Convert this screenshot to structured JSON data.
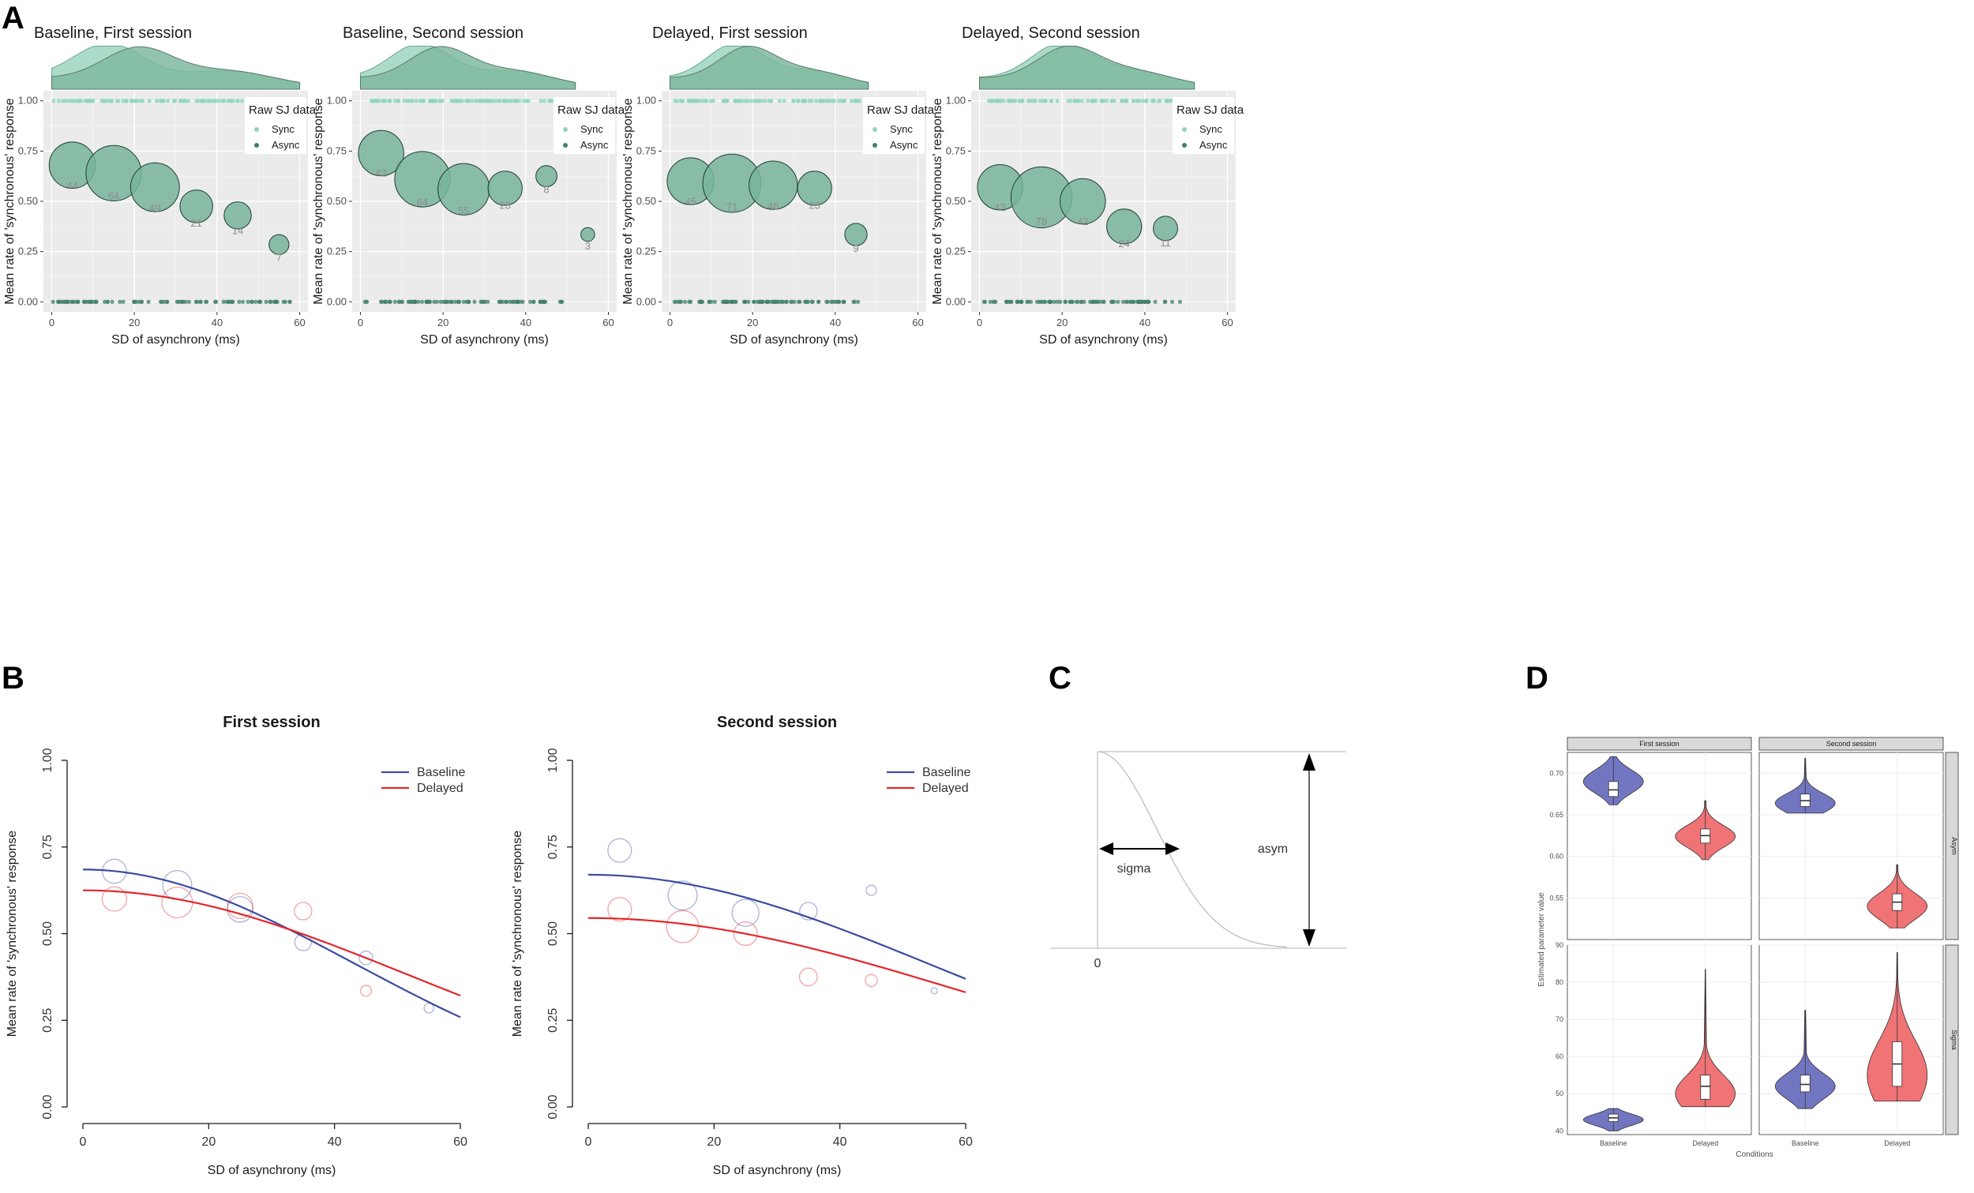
{
  "panel_letters": {
    "a": "A",
    "b": "B",
    "c": "C",
    "d": "D"
  },
  "chart_data": [
    {
      "id": "A1",
      "type": "scatter",
      "title": "Baseline, First session",
      "xlabel": "SD of asynchrony (ms)",
      "ylabel": "Mean rate of 'synchronous' response",
      "xlim": [
        -2,
        62
      ],
      "ylim": [
        -0.05,
        1.05
      ],
      "xticks": [
        "0",
        "20",
        "40",
        "60"
      ],
      "yticks": [
        "0.00",
        "0.25",
        "0.50",
        "0.75",
        "1.00"
      ],
      "legend_title": "Raw SJ data",
      "legend_items": [
        "Sync",
        "Async"
      ],
      "bins": [
        {
          "x": 5,
          "y": 0.68,
          "n": "44"
        },
        {
          "x": 15,
          "y": 0.64,
          "n": "64"
        },
        {
          "x": 25,
          "y": 0.57,
          "n": "49"
        },
        {
          "x": 35,
          "y": 0.475,
          "n": "21"
        },
        {
          "x": 45,
          "y": 0.43,
          "n": "14"
        },
        {
          "x": 55,
          "y": 0.285,
          "n": "7"
        }
      ],
      "raw_range": [
        0,
        58
      ]
    },
    {
      "id": "A2",
      "type": "scatter",
      "title": "Baseline, Second session",
      "xlabel": "SD of asynchrony (ms)",
      "ylabel": "Mean rate of 'synchronous' response",
      "xlim": [
        -2,
        62
      ],
      "ylim": [
        -0.05,
        1.05
      ],
      "xticks": [
        "0",
        "20",
        "40",
        "60"
      ],
      "yticks": [
        "0.00",
        "0.25",
        "0.50",
        "0.75",
        "1.00"
      ],
      "legend_title": "Raw SJ data",
      "legend_items": [
        "Sync",
        "Async"
      ],
      "bins": [
        {
          "x": 5,
          "y": 0.74,
          "n": "42"
        },
        {
          "x": 15,
          "y": 0.61,
          "n": "64"
        },
        {
          "x": 25,
          "y": 0.56,
          "n": "55"
        },
        {
          "x": 35,
          "y": 0.565,
          "n": "23"
        },
        {
          "x": 45,
          "y": 0.625,
          "n": "8"
        },
        {
          "x": 55,
          "y": 0.335,
          "n": "3"
        }
      ],
      "raw_range": [
        1,
        50
      ]
    },
    {
      "id": "A3",
      "type": "scatter",
      "title": "Delayed, First session",
      "xlabel": "SD of asynchrony (ms)",
      "ylabel": "Mean rate of 'synchronous' response",
      "xlim": [
        -2,
        62
      ],
      "ylim": [
        -0.05,
        1.05
      ],
      "xticks": [
        "0",
        "20",
        "40",
        "60"
      ],
      "yticks": [
        "0.00",
        "0.25",
        "0.50",
        "0.75",
        "1.00"
      ],
      "legend_title": "Raw SJ data",
      "legend_items": [
        "Sync",
        "Async"
      ],
      "bins": [
        {
          "x": 5,
          "y": 0.6,
          "n": "45"
        },
        {
          "x": 15,
          "y": 0.59,
          "n": "71"
        },
        {
          "x": 25,
          "y": 0.58,
          "n": "48"
        },
        {
          "x": 35,
          "y": 0.565,
          "n": "23"
        },
        {
          "x": 45,
          "y": 0.335,
          "n": "9"
        }
      ],
      "raw_range": [
        1,
        46
      ]
    },
    {
      "id": "A4",
      "type": "scatter",
      "title": "Delayed, Second session",
      "xlabel": "SD of asynchrony (ms)",
      "ylabel": "Mean rate of 'synchronous' response",
      "xlim": [
        -2,
        62
      ],
      "ylim": [
        -0.05,
        1.05
      ],
      "xticks": [
        "0",
        "20",
        "40",
        "60"
      ],
      "yticks": [
        "0.00",
        "0.25",
        "0.50",
        "0.75",
        "1.00"
      ],
      "legend_title": "Raw SJ data",
      "legend_items": [
        "Sync",
        "Async"
      ],
      "bins": [
        {
          "x": 5,
          "y": 0.57,
          "n": "42"
        },
        {
          "x": 15,
          "y": 0.52,
          "n": "78"
        },
        {
          "x": 25,
          "y": 0.5,
          "n": "42"
        },
        {
          "x": 35,
          "y": 0.375,
          "n": "24"
        },
        {
          "x": 45,
          "y": 0.365,
          "n": "11"
        }
      ],
      "raw_range": [
        1,
        50
      ]
    },
    {
      "id": "B1",
      "type": "line",
      "title": "First session",
      "xlabel": "SD of asynchrony (ms)",
      "ylabel": "Mean rate of 'synchronous' response",
      "xlim": [
        0,
        60
      ],
      "ylim": [
        0,
        1
      ],
      "xticks": [
        "0",
        "20",
        "40",
        "60"
      ],
      "yticks": [
        "0.00",
        "0.25",
        "0.50",
        "0.75",
        "1.00"
      ],
      "series": [
        {
          "name": "Baseline",
          "color": "#3a4ba0",
          "asym": 0.685,
          "sigma": 43,
          "points": [
            {
              "x": 5,
              "y": 0.68,
              "n": 44
            },
            {
              "x": 15,
              "y": 0.64,
              "n": 64
            },
            {
              "x": 25,
              "y": 0.57,
              "n": 49
            },
            {
              "x": 35,
              "y": 0.475,
              "n": 21
            },
            {
              "x": 45,
              "y": 0.43,
              "n": 14
            },
            {
              "x": 55,
              "y": 0.285,
              "n": 7
            }
          ]
        },
        {
          "name": "Delayed",
          "color": "#e3262b",
          "asym": 0.625,
          "sigma": 52,
          "points": [
            {
              "x": 5,
              "y": 0.6,
              "n": 45
            },
            {
              "x": 15,
              "y": 0.59,
              "n": 71
            },
            {
              "x": 25,
              "y": 0.58,
              "n": 48
            },
            {
              "x": 35,
              "y": 0.565,
              "n": 23
            },
            {
              "x": 45,
              "y": 0.335,
              "n": 9
            }
          ]
        }
      ]
    },
    {
      "id": "B2",
      "type": "line",
      "title": "Second session",
      "xlabel": "SD of asynchrony (ms)",
      "ylabel": "Mean rate of 'synchronous' response",
      "xlim": [
        0,
        60
      ],
      "ylim": [
        0,
        1
      ],
      "xticks": [
        "0",
        "20",
        "40",
        "60"
      ],
      "yticks": [
        "0.00",
        "0.25",
        "0.50",
        "0.75",
        "1.00"
      ],
      "series": [
        {
          "name": "Baseline",
          "color": "#3a4ba0",
          "asym": 0.67,
          "sigma": 55,
          "points": [
            {
              "x": 5,
              "y": 0.74,
              "n": 42
            },
            {
              "x": 15,
              "y": 0.61,
              "n": 64
            },
            {
              "x": 25,
              "y": 0.56,
              "n": 55
            },
            {
              "x": 35,
              "y": 0.565,
              "n": 23
            },
            {
              "x": 45,
              "y": 0.625,
              "n": 8
            },
            {
              "x": 55,
              "y": 0.335,
              "n": 3
            }
          ]
        },
        {
          "name": "Delayed",
          "color": "#e3262b",
          "asym": 0.545,
          "sigma": 60,
          "points": [
            {
              "x": 5,
              "y": 0.57,
              "n": 42
            },
            {
              "x": 15,
              "y": 0.52,
              "n": 78
            },
            {
              "x": 25,
              "y": 0.5,
              "n": 42
            },
            {
              "x": 35,
              "y": 0.375,
              "n": 24
            },
            {
              "x": 45,
              "y": 0.365,
              "n": 11
            }
          ]
        }
      ]
    },
    {
      "id": "C",
      "type": "diagram",
      "labels": {
        "sigma": "sigma",
        "asym": "asym",
        "zero": "0"
      }
    },
    {
      "id": "D",
      "type": "violin",
      "strips": {
        "col1": "First session",
        "col2": "Second session",
        "row1": "Asym",
        "row2": "Sigma"
      },
      "ylabel": "Estimated parameter value",
      "xlabel": "Conditions",
      "categories": [
        "Baseline",
        "Delayed"
      ],
      "colors": {
        "Baseline": "#6a6fbe",
        "Delayed": "#ef6b6f"
      },
      "asym_axis": {
        "range": [
          0.5,
          0.725
        ],
        "ticks": [
          "0.55",
          "0.60",
          "0.65",
          "0.70"
        ]
      },
      "sigma_axis": {
        "range": [
          39,
          90
        ],
        "ticks": [
          "40",
          "50",
          "60",
          "70",
          "80",
          "90"
        ]
      },
      "violins": {
        "asym_first": [
          {
            "min": 0.662,
            "q1": 0.672,
            "median": 0.68,
            "q3": 0.69,
            "max": 0.72,
            "peak": 0.69
          },
          {
            "min": 0.596,
            "q1": 0.616,
            "median": 0.625,
            "q3": 0.633,
            "max": 0.667,
            "peak": 0.624
          }
        ],
        "asym_second": [
          {
            "min": 0.652,
            "q1": 0.66,
            "median": 0.667,
            "q3": 0.675,
            "max": 0.718,
            "peak": 0.664
          },
          {
            "min": 0.514,
            "q1": 0.535,
            "median": 0.545,
            "q3": 0.555,
            "max": 0.59,
            "peak": 0.54
          }
        ],
        "sigma_first": [
          {
            "min": 40,
            "q1": 42.5,
            "median": 43.5,
            "q3": 44.5,
            "max": 46,
            "peak": 43
          },
          {
            "min": 46.5,
            "q1": 48.5,
            "median": 52,
            "q3": 55,
            "max": 83.5,
            "peak": 50
          }
        ],
        "sigma_second": [
          {
            "min": 46,
            "q1": 50.5,
            "median": 52.5,
            "q3": 55,
            "max": 72.5,
            "peak": 52
          },
          {
            "min": 48,
            "q1": 52,
            "median": 58,
            "q3": 64,
            "max": 88,
            "peak": 55
          }
        ]
      }
    }
  ]
}
